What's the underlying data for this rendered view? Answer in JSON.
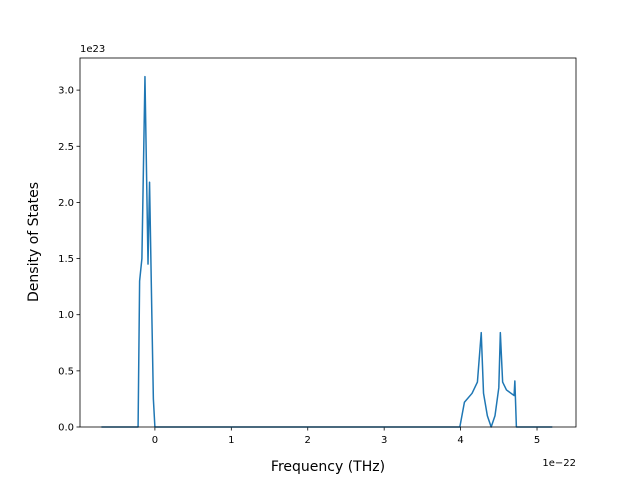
{
  "chart_data": {
    "type": "line",
    "x_label": "Frequency (THz)",
    "y_label": "Density of States",
    "x_offset_label": "1e−22",
    "y_offset_label": "1e23",
    "xlim": [
      -0.98,
      5.51
    ],
    "ylim": [
      0,
      3.286
    ],
    "xticks": [
      0,
      1,
      2,
      3,
      4,
      5
    ],
    "yticks": [
      {
        "value": 0,
        "label": "0.0"
      },
      {
        "value": 0.5,
        "label": "0.5"
      },
      {
        "value": 1,
        "label": "1.0"
      },
      {
        "value": 1.5,
        "label": "1.5"
      },
      {
        "value": 2,
        "label": "2.0"
      },
      {
        "value": 2.5,
        "label": "2.5"
      },
      {
        "value": 3,
        "label": "3.0"
      }
    ],
    "grid": false,
    "series": [
      {
        "color": "#1f77b4",
        "x": [
          -0.7,
          -0.22,
          -0.2,
          -0.17,
          -0.13,
          -0.09,
          -0.07,
          -0.04,
          -0.02,
          0.0,
          3.99,
          4.05,
          4.15,
          4.22,
          4.27,
          4.3,
          4.35,
          4.4,
          4.45,
          4.5,
          4.52,
          4.55,
          4.6,
          4.7,
          4.71,
          4.73,
          5.2
        ],
        "values": [
          0,
          0,
          1.3,
          1.5,
          3.12,
          1.45,
          2.18,
          1.0,
          0.25,
          0,
          0,
          0.22,
          0.3,
          0.4,
          0.84,
          0.3,
          0.1,
          0,
          0.1,
          0.35,
          0.84,
          0.4,
          0.33,
          0.28,
          0.41,
          0,
          0
        ]
      }
    ]
  }
}
